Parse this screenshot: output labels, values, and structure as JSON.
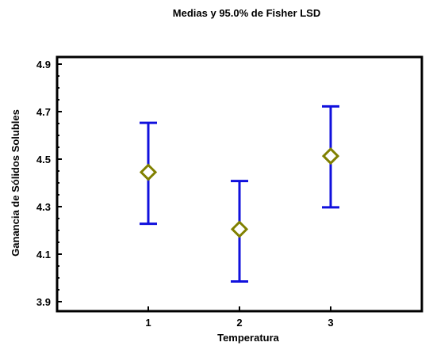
{
  "chart_data": {
    "type": "scatter",
    "title": "Medias y 95.0% de Fisher LSD",
    "xlabel": "Temperatura",
    "ylabel": "Ganancia de Sólidos Solubles",
    "categories": [
      "1",
      "2",
      "3"
    ],
    "xlim": [
      0,
      4
    ],
    "ylim": [
      3.86,
      4.93
    ],
    "yticks": [
      "3.9",
      "4.1",
      "4.3",
      "4.5",
      "4.7",
      "4.9"
    ],
    "series": [
      {
        "means": [
          4.445,
          4.205,
          4.513
        ],
        "lower": [
          4.228,
          3.985,
          4.297
        ],
        "upper": [
          4.653,
          4.408,
          4.722
        ]
      }
    ],
    "grid": false,
    "colors": {
      "interval": "#1010dd",
      "marker": "#808000",
      "axis": "#000000"
    }
  }
}
